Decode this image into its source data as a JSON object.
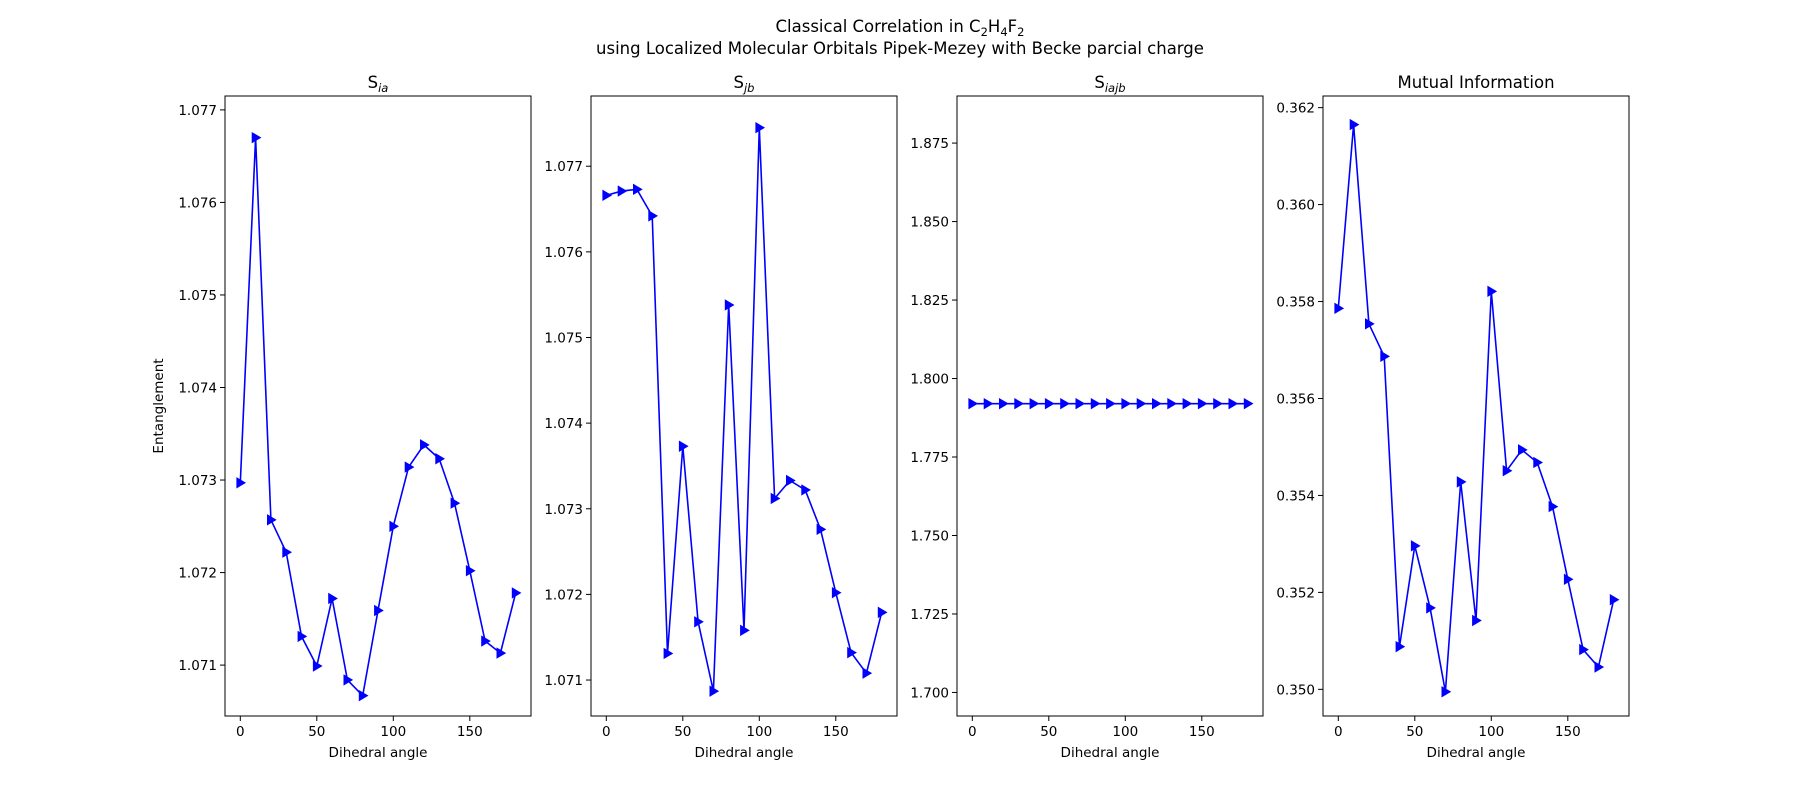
{
  "figure": {
    "suptitle_line1_pre": "Classical Correlation in C",
    "suptitle_line1_sub1": "2",
    "suptitle_line1_mid1": "H",
    "suptitle_line1_sub2": "4",
    "suptitle_line1_mid2": "F",
    "suptitle_line1_sub3": "2",
    "suptitle_line2": "using Localized Molecular Orbitals Pipek-Mezey with Becke parcial charge"
  },
  "style": {
    "series_color": "#0000ff",
    "marker": "triangle-right"
  },
  "chart_data": [
    {
      "type": "line",
      "title_main": "S",
      "title_sub": "ia",
      "xlabel": "Dihedral angle",
      "ylabel": "Entanglement",
      "xlim": [
        -10,
        190
      ],
      "ylim": [
        1.07045,
        1.07715
      ],
      "xticks": [
        0,
        50,
        100,
        150
      ],
      "yticks": [
        1.071,
        1.072,
        1.073,
        1.074,
        1.075,
        1.076,
        1.077
      ],
      "ytick_labels": [
        "1.071",
        "1.072",
        "1.073",
        "1.074",
        "1.075",
        "1.076",
        "1.077"
      ],
      "x": [
        0,
        10,
        20,
        30,
        40,
        50,
        60,
        70,
        80,
        90,
        100,
        110,
        120,
        130,
        140,
        150,
        160,
        170,
        180
      ],
      "values": [
        1.07297,
        1.0767,
        1.07257,
        1.07222,
        1.07131,
        1.07099,
        1.07172,
        1.07084,
        1.07067,
        1.07159,
        1.0725,
        1.07314,
        1.07338,
        1.07323,
        1.07275,
        1.07202,
        1.07126,
        1.07113,
        1.07178
      ]
    },
    {
      "type": "line",
      "title_main": "S",
      "title_sub": "jb",
      "xlabel": "Dihedral angle",
      "ylabel": "",
      "xlim": [
        -10,
        190
      ],
      "ylim": [
        1.07058,
        1.07782
      ],
      "xticks": [
        0,
        50,
        100,
        150
      ],
      "yticks": [
        1.071,
        1.072,
        1.073,
        1.074,
        1.075,
        1.076,
        1.077
      ],
      "ytick_labels": [
        "1.071",
        "1.072",
        "1.073",
        "1.074",
        "1.075",
        "1.076",
        "1.077"
      ],
      "x": [
        0,
        10,
        20,
        30,
        40,
        50,
        60,
        70,
        80,
        90,
        100,
        110,
        120,
        130,
        140,
        150,
        160,
        170,
        180
      ],
      "values": [
        1.07666,
        1.07671,
        1.07673,
        1.07642,
        1.07131,
        1.07373,
        1.07168,
        1.07087,
        1.07538,
        1.07158,
        1.07745,
        1.07312,
        1.07333,
        1.07322,
        1.07276,
        1.07202,
        1.07132,
        1.07108,
        1.07179
      ]
    },
    {
      "type": "line",
      "title_main": "S",
      "title_sub": "iajb",
      "xlabel": "Dihedral angle",
      "ylabel": "",
      "xlim": [
        -10,
        190
      ],
      "ylim": [
        1.6925,
        1.89
      ],
      "xticks": [
        0,
        50,
        100,
        150
      ],
      "yticks": [
        1.7,
        1.725,
        1.75,
        1.775,
        1.8,
        1.825,
        1.85,
        1.875
      ],
      "ytick_labels": [
        "1.700",
        "1.725",
        "1.750",
        "1.775",
        "1.800",
        "1.825",
        "1.850",
        "1.875"
      ],
      "x": [
        0,
        10,
        20,
        30,
        40,
        50,
        60,
        70,
        80,
        90,
        100,
        110,
        120,
        130,
        140,
        150,
        160,
        170,
        180
      ],
      "values": [
        1.792,
        1.792,
        1.792,
        1.792,
        1.792,
        1.792,
        1.792,
        1.792,
        1.792,
        1.792,
        1.792,
        1.792,
        1.792,
        1.792,
        1.792,
        1.792,
        1.792,
        1.792,
        1.792
      ]
    },
    {
      "type": "line",
      "title_main": "Mutual Information",
      "title_sub": "",
      "xlabel": "Dihedral angle",
      "ylabel": "",
      "xlim": [
        -10,
        190
      ],
      "ylim": [
        0.34945,
        0.36224
      ],
      "xticks": [
        0,
        50,
        100,
        150
      ],
      "yticks": [
        0.35,
        0.352,
        0.354,
        0.356,
        0.358,
        0.36,
        0.362
      ],
      "ytick_labels": [
        "0.350",
        "0.352",
        "0.354",
        "0.356",
        "0.358",
        "0.360",
        "0.362"
      ],
      "x": [
        0,
        10,
        20,
        30,
        40,
        50,
        60,
        70,
        80,
        90,
        100,
        110,
        120,
        130,
        140,
        150,
        160,
        170,
        180
      ],
      "values": [
        0.35786,
        0.36165,
        0.35754,
        0.35687,
        0.35088,
        0.35296,
        0.35168,
        0.34995,
        0.35428,
        0.35142,
        0.35821,
        0.35451,
        0.35494,
        0.35468,
        0.35377,
        0.35227,
        0.35082,
        0.35046,
        0.35185
      ]
    }
  ]
}
